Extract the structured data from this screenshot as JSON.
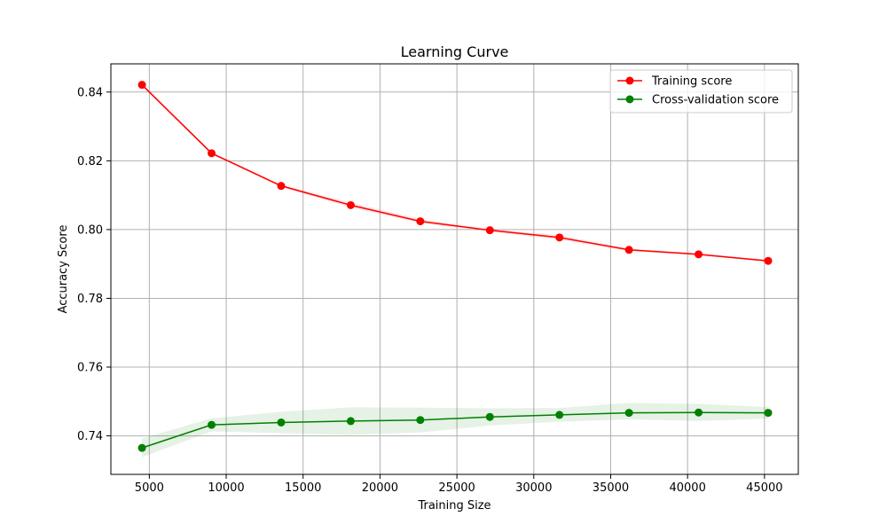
{
  "chart_data": {
    "type": "line",
    "title": "Learning Curve",
    "xlabel": "Training Size",
    "ylabel": "Accuracy Score",
    "xlim": [
      2500,
      47200
    ],
    "ylim": [
      0.7288,
      0.8482
    ],
    "xticks": [
      5000,
      10000,
      15000,
      20000,
      25000,
      30000,
      35000,
      40000,
      45000
    ],
    "yticks": [
      0.74,
      0.76,
      0.78,
      0.8,
      0.82,
      0.84
    ],
    "xtick_labels": [
      "5000",
      "10000",
      "15000",
      "20000",
      "25000",
      "30000",
      "35000",
      "40000",
      "45000"
    ],
    "ytick_labels": [
      "0.74",
      "0.76",
      "0.78",
      "0.80",
      "0.82",
      "0.84"
    ],
    "grid": true,
    "legend_position": "top-right",
    "x": [
      4524,
      9048,
      13572,
      18096,
      22620,
      27144,
      31668,
      36192,
      40716,
      45240
    ],
    "series": [
      {
        "name": "Training score",
        "color": "#ff0000",
        "band_color": "#ff0000",
        "values": [
          0.8421,
          0.8222,
          0.8127,
          0.8071,
          0.8024,
          0.7998,
          0.7977,
          0.7941,
          0.7928,
          0.7909
        ],
        "band_lower": [
          0.8417,
          0.8218,
          0.8124,
          0.8064,
          0.8018,
          0.7994,
          0.797,
          0.7937,
          0.7925,
          0.7906
        ],
        "band_upper": [
          0.8425,
          0.8226,
          0.8131,
          0.8079,
          0.803,
          0.8002,
          0.7984,
          0.7945,
          0.7931,
          0.7912
        ]
      },
      {
        "name": "Cross-validation score",
        "color": "#008000",
        "band_color": "#008000",
        "values": [
          0.7365,
          0.7432,
          0.7439,
          0.7443,
          0.7446,
          0.7455,
          0.7461,
          0.7467,
          0.7468,
          0.7467
        ],
        "band_lower": [
          0.7338,
          0.7413,
          0.7408,
          0.7403,
          0.741,
          0.743,
          0.7441,
          0.7448,
          0.7443,
          0.745
        ],
        "band_upper": [
          0.7392,
          0.7451,
          0.747,
          0.7483,
          0.7482,
          0.748,
          0.7481,
          0.7496,
          0.7493,
          0.7484
        ]
      }
    ]
  }
}
